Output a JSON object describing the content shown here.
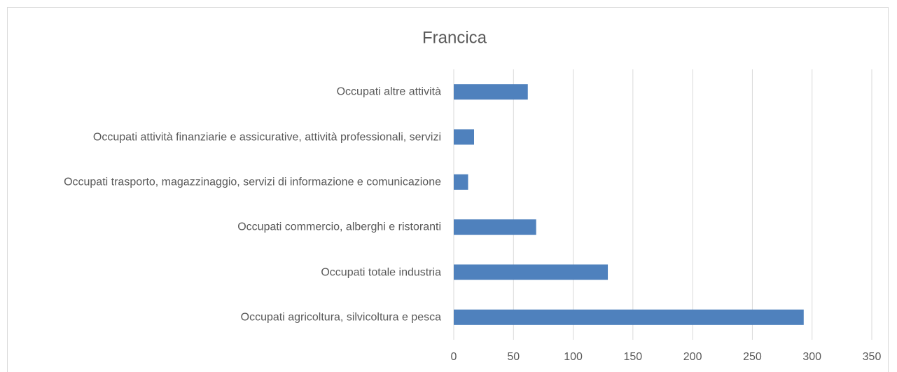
{
  "chart_data": {
    "type": "barh",
    "title": "Francica",
    "categories": [
      "Occupati altre attività",
      "Occupati attività finanziarie e assicurative, attività professionali, servizi",
      "Occupati trasporto, magazzinaggio, servizi di informazione e comunicazione",
      "Occupati commercio, alberghi e ristoranti",
      "Occupati totale industria",
      "Occupati agricoltura, silvicoltura e pesca"
    ],
    "values": [
      62,
      17,
      12,
      69,
      129,
      293
    ],
    "color": "#4f81bd",
    "xlim": [
      0,
      350
    ],
    "xticks": [
      0,
      50,
      100,
      150,
      200,
      250,
      300,
      350
    ],
    "grid": true
  }
}
